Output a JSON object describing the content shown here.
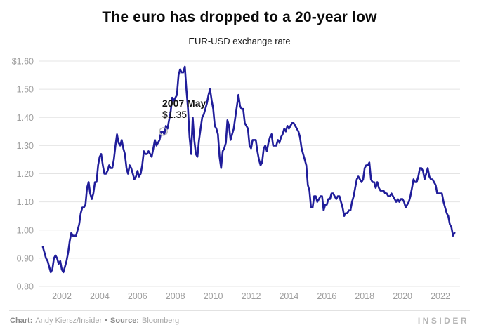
{
  "header": {
    "title": "The euro has dropped to a 20-year low",
    "subtitle": "EUR-USD exchange rate"
  },
  "chart_data": {
    "type": "line",
    "title": "The euro has dropped to a 20-year low",
    "subtitle": "EUR-USD exchange rate",
    "series_name": "EUR-USD exchange rate",
    "frequency": "monthly",
    "start_year": 2001,
    "start_month": 1,
    "values": [
      0.94,
      0.92,
      0.9,
      0.89,
      0.87,
      0.85,
      0.86,
      0.9,
      0.91,
      0.9,
      0.88,
      0.89,
      0.86,
      0.85,
      0.87,
      0.89,
      0.92,
      0.96,
      0.99,
      0.98,
      0.98,
      0.98,
      1.0,
      1.02,
      1.06,
      1.08,
      1.08,
      1.09,
      1.15,
      1.17,
      1.13,
      1.11,
      1.13,
      1.17,
      1.17,
      1.23,
      1.26,
      1.27,
      1.23,
      1.2,
      1.2,
      1.21,
      1.23,
      1.22,
      1.22,
      1.25,
      1.3,
      1.34,
      1.31,
      1.3,
      1.32,
      1.29,
      1.27,
      1.22,
      1.2,
      1.23,
      1.22,
      1.2,
      1.18,
      1.19,
      1.21,
      1.19,
      1.2,
      1.23,
      1.28,
      1.27,
      1.27,
      1.28,
      1.27,
      1.26,
      1.29,
      1.32,
      1.3,
      1.31,
      1.32,
      1.35,
      1.35,
      1.34,
      1.37,
      1.36,
      1.39,
      1.42,
      1.47,
      1.46,
      1.47,
      1.48,
      1.55,
      1.57,
      1.56,
      1.56,
      1.58,
      1.5,
      1.43,
      1.33,
      1.27,
      1.4,
      1.32,
      1.27,
      1.26,
      1.32,
      1.36,
      1.4,
      1.41,
      1.43,
      1.45,
      1.48,
      1.5,
      1.46,
      1.43,
      1.37,
      1.36,
      1.34,
      1.26,
      1.22,
      1.28,
      1.29,
      1.31,
      1.39,
      1.37,
      1.32,
      1.34,
      1.36,
      1.4,
      1.44,
      1.48,
      1.44,
      1.43,
      1.43,
      1.38,
      1.37,
      1.36,
      1.3,
      1.29,
      1.32,
      1.32,
      1.32,
      1.28,
      1.25,
      1.23,
      1.24,
      1.29,
      1.3,
      1.28,
      1.31,
      1.33,
      1.34,
      1.3,
      1.3,
      1.3,
      1.32,
      1.31,
      1.33,
      1.34,
      1.36,
      1.35,
      1.37,
      1.36,
      1.37,
      1.38,
      1.38,
      1.37,
      1.36,
      1.35,
      1.33,
      1.29,
      1.27,
      1.25,
      1.23,
      1.16,
      1.14,
      1.08,
      1.08,
      1.12,
      1.12,
      1.1,
      1.11,
      1.12,
      1.12,
      1.07,
      1.09,
      1.09,
      1.11,
      1.11,
      1.13,
      1.13,
      1.12,
      1.11,
      1.12,
      1.12,
      1.1,
      1.08,
      1.05,
      1.06,
      1.06,
      1.07,
      1.07,
      1.1,
      1.12,
      1.15,
      1.18,
      1.19,
      1.18,
      1.17,
      1.18,
      1.22,
      1.23,
      1.23,
      1.24,
      1.18,
      1.17,
      1.17,
      1.15,
      1.17,
      1.15,
      1.14,
      1.14,
      1.14,
      1.13,
      1.13,
      1.12,
      1.12,
      1.13,
      1.12,
      1.11,
      1.1,
      1.11,
      1.1,
      1.11,
      1.11,
      1.1,
      1.08,
      1.09,
      1.1,
      1.12,
      1.15,
      1.18,
      1.17,
      1.17,
      1.19,
      1.22,
      1.22,
      1.21,
      1.18,
      1.2,
      1.22,
      1.19,
      1.18,
      1.18,
      1.17,
      1.16,
      1.13,
      1.13,
      1.13,
      1.13,
      1.1,
      1.08,
      1.06,
      1.05,
      1.02,
      1.01,
      0.98,
      0.99
    ],
    "ylim": [
      0.8,
      1.6
    ],
    "yticks": [
      1.6,
      1.5,
      1.4,
      1.3,
      1.2,
      1.1,
      1.0,
      0.9,
      0.8
    ],
    "ytick_labels": [
      "$1.60",
      "1.50",
      "1.40",
      "1.30",
      "1.20",
      "1.10",
      "1.00",
      "0.90",
      "0.80"
    ],
    "xticks": [
      2002,
      2004,
      2006,
      2008,
      2010,
      2012,
      2014,
      2016,
      2018,
      2020,
      2022
    ],
    "grid": true,
    "legend": "none",
    "annotation": {
      "date_label": "2007 May",
      "value_label": "$1.35",
      "x_year": 2007.37,
      "y_value": 1.35
    },
    "line_color": "#201d9a",
    "grid_color": "#e4e4e4",
    "axis_label_color": "#9e9e9e",
    "marker_stroke_color": "#bdbdbd"
  },
  "annotation": {
    "date": "2007 May",
    "value": "$1.35"
  },
  "footer": {
    "chart_label": "Chart:",
    "chart_credit": "Andy Kiersz/Insider",
    "separator": "•",
    "source_label": "Source:",
    "source_name": "Bloomberg",
    "logo": "INSIDER"
  }
}
